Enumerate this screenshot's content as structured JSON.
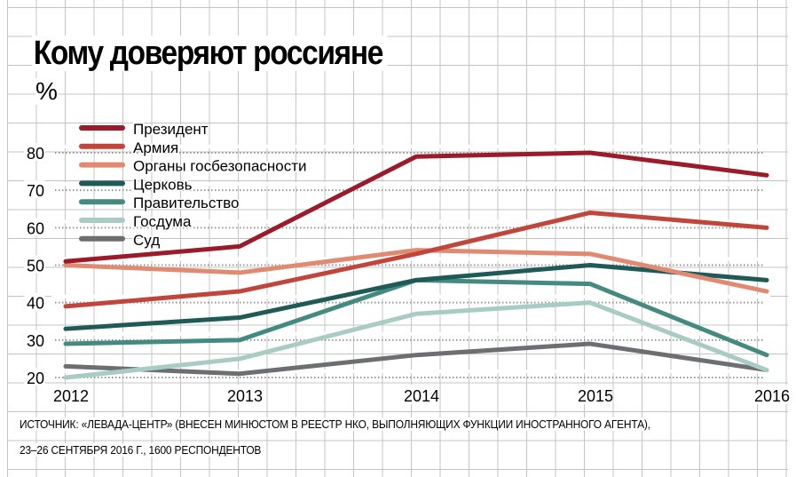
{
  "title": "Кому доверяют россияне",
  "unit": "%",
  "source_line1": "ИСТОЧНИК: «ЛЕВАДА-ЦЕНТР» (ВНЕСЕН МИНЮСТОМ В РЕЕСТР НКО, ВЫПОЛНЯЮЩИХ ФУНКЦИИ ИНОСТРАННОГО АГЕНТА),",
  "source_line2": "23–26 СЕНТЯБРЯ 2016 Г., 1600 РЕСПОНДЕНТОВ",
  "chart_data": {
    "type": "line",
    "title": "Кому доверяют россияне",
    "ylabel": "%",
    "x": [
      "2012",
      "2013",
      "2014",
      "2015",
      "2016"
    ],
    "ylim": [
      20,
      80
    ],
    "yticks": [
      "20",
      "30",
      "40",
      "50",
      "60",
      "70",
      "80"
    ],
    "legend_position": "top-left",
    "series": [
      {
        "name": "Президент",
        "color": "#9b1b2a",
        "values": [
          51,
          55,
          79,
          80,
          74
        ]
      },
      {
        "name": "Армия",
        "color": "#c0463c",
        "values": [
          39,
          43,
          53,
          64,
          60
        ]
      },
      {
        "name": "Органы госбезопасности",
        "color": "#e08a72",
        "values": [
          50,
          48,
          54,
          53,
          43
        ]
      },
      {
        "name": "Церковь",
        "color": "#1f5a57",
        "values": [
          33,
          36,
          46,
          50,
          46
        ]
      },
      {
        "name": "Правительство",
        "color": "#458a80",
        "values": [
          29,
          30,
          46,
          45,
          26
        ]
      },
      {
        "name": "Госдума",
        "color": "#a8cbc4",
        "values": [
          20,
          25,
          37,
          40,
          22
        ]
      },
      {
        "name": "Суд",
        "color": "#6d6e71",
        "values": [
          23,
          21,
          26,
          29,
          22
        ]
      }
    ]
  }
}
